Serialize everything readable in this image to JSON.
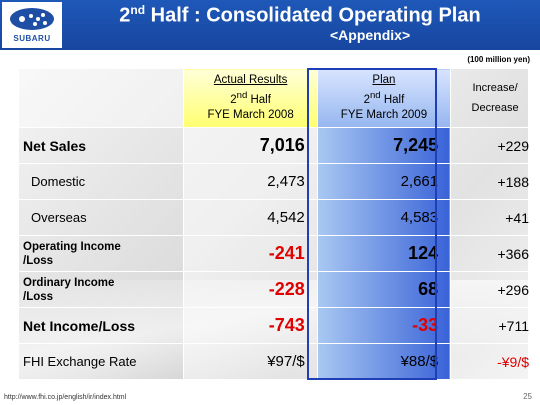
{
  "header": {
    "title_main": "Half : Consolidated Operating Plan",
    "title_num": "2",
    "title_sup": "nd",
    "subtitle": "<Appendix>",
    "logo_text": "SUBARU"
  },
  "unit_note": "(100 million yen)",
  "columns": {
    "actual": {
      "line1": "Actual Results",
      "line2_num": "2",
      "line2_sup": "nd",
      "line2_rest": " Half",
      "line3": "FYE March 2008"
    },
    "plan": {
      "line1": "Plan",
      "line2_num": "2",
      "line2_sup": "nd",
      "line2_rest": " Half",
      "line3": "FYE March 2009"
    },
    "increase": {
      "line1": "Increase/",
      "line2": "Decrease"
    }
  },
  "rows": [
    {
      "label": "Net Sales",
      "actual": "7,016",
      "plan": "7,245",
      "increase": "+229"
    },
    {
      "label": "Domestic",
      "actual": "2,473",
      "plan": "2,661",
      "increase": "+188"
    },
    {
      "label": "Overseas",
      "actual": "4,542",
      "plan": "4,583",
      "increase": "+41"
    },
    {
      "label_line1": "Operating Income",
      "label_line2": "/Loss",
      "actual": "-241",
      "plan": "124",
      "increase": "+366"
    },
    {
      "label_line1": "Ordinary Income",
      "label_line2": "/Loss",
      "actual": "-228",
      "plan": "68",
      "increase": "+296"
    },
    {
      "label": "Net Income/Loss",
      "actual": "-743",
      "plan": "-33",
      "increase": "+711"
    },
    {
      "label": "FHI Exchange Rate",
      "actual": "¥97/$",
      "plan": "¥88/$",
      "increase": "-¥9/$"
    }
  ],
  "footer": {
    "url": "http://www.fhi.co.jp/english/ir/index.html",
    "page": "25"
  },
  "colors": {
    "header_blue": "#1746a0",
    "plan_highlight": "#3a63d8",
    "actual_header": "#ffff70",
    "negative": "#e00000"
  }
}
